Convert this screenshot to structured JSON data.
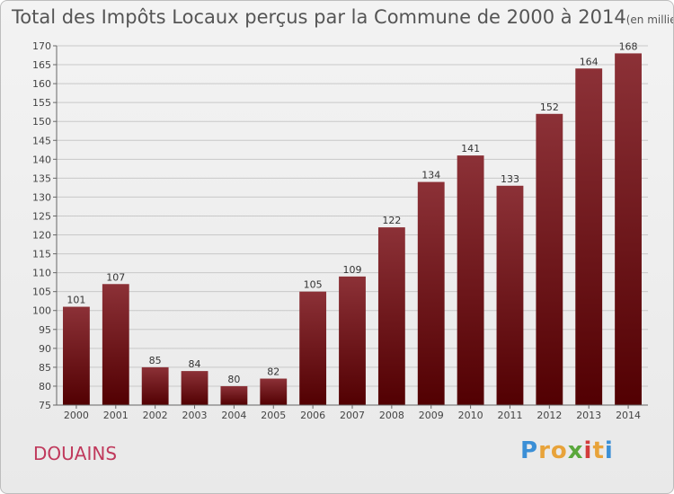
{
  "title": "Total des Impôts Locaux perçus par la Commune de 2000 à 2014",
  "title_unit": "(en milliers d'€)",
  "commune": "DOUAINS",
  "brand": {
    "letters": [
      "P",
      "r",
      "o",
      "x",
      "i",
      "t",
      "i"
    ],
    "colors": [
      "#3b8fd6",
      "#e8a33a",
      "#e8a33a",
      "#5aa83c",
      "#d23b3b",
      "#e8a33a",
      "#3b8fd6"
    ]
  },
  "colors": {
    "bar_top": "#8c3137",
    "bar_bottom": "#520002",
    "grid": "#c8c8c8",
    "axis": "#666666",
    "commune": "#c0395c"
  },
  "chart_data": {
    "type": "bar",
    "categories": [
      "2000",
      "2001",
      "2002",
      "2003",
      "2004",
      "2005",
      "2006",
      "2007",
      "2008",
      "2009",
      "2010",
      "2011",
      "2012",
      "2013",
      "2014"
    ],
    "values": [
      101,
      107,
      85,
      84,
      80,
      82,
      105,
      109,
      122,
      134,
      141,
      133,
      152,
      164,
      168
    ],
    "title": "Total des Impôts Locaux perçus par la Commune de 2000 à 2014",
    "xlabel": "",
    "ylabel": "",
    "ylim": [
      75,
      170
    ],
    "yticks": [
      75,
      80,
      85,
      90,
      95,
      100,
      105,
      110,
      115,
      120,
      125,
      130,
      135,
      140,
      145,
      150,
      155,
      160,
      165,
      170
    ],
    "grid": true,
    "data_labels": true
  }
}
